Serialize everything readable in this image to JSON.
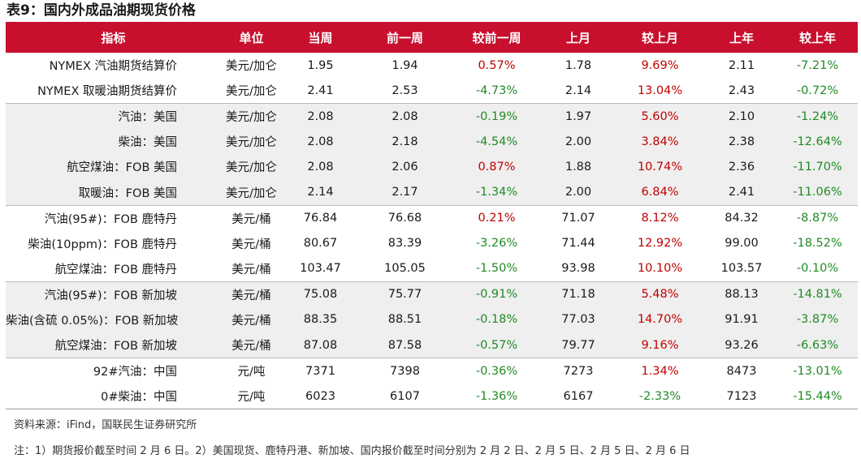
{
  "title": "表9：国内外成品油期现货价格",
  "headers": [
    "指标",
    "单位",
    "当周",
    "前一周",
    "较前一周",
    "上月",
    "较上月",
    "上年",
    "较上年"
  ],
  "rows": [
    {
      "name": "NYMEX 汽油期货结算价",
      "unit": "美元/加仑",
      "cur": "1.95",
      "prev": "1.94",
      "wow": "0.57%",
      "lm": "1.78",
      "mom": "9.69%",
      "ly": "2.11",
      "yoy": "-7.21%"
    },
    {
      "name": "NYMEX 取暖油期货结算价",
      "unit": "美元/加仑",
      "cur": "2.41",
      "prev": "2.53",
      "wow": "-4.73%",
      "lm": "2.14",
      "mom": "13.04%",
      "ly": "2.43",
      "yoy": "-0.72%"
    },
    {
      "name": "汽油：美国",
      "unit": "美元/加仑",
      "cur": "2.08",
      "prev": "2.08",
      "wow": "-0.19%",
      "lm": "1.97",
      "mom": "5.60%",
      "ly": "2.10",
      "yoy": "-1.24%"
    },
    {
      "name": "柴油：美国",
      "unit": "美元/加仑",
      "cur": "2.08",
      "prev": "2.18",
      "wow": "-4.54%",
      "lm": "2.00",
      "mom": "3.84%",
      "ly": "2.38",
      "yoy": "-12.64%"
    },
    {
      "name": "航空煤油：FOB 美国",
      "unit": "美元/加仑",
      "cur": "2.08",
      "prev": "2.06",
      "wow": "0.87%",
      "lm": "1.88",
      "mom": "10.74%",
      "ly": "2.36",
      "yoy": "-11.70%"
    },
    {
      "name": "取暖油：FOB 美国",
      "unit": "美元/加仑",
      "cur": "2.14",
      "prev": "2.17",
      "wow": "-1.34%",
      "lm": "2.00",
      "mom": "6.84%",
      "ly": "2.41",
      "yoy": "-11.06%"
    },
    {
      "name": "汽油(95#)：FOB 鹿特丹",
      "unit": "美元/桶",
      "cur": "76.84",
      "prev": "76.68",
      "wow": "0.21%",
      "lm": "71.07",
      "mom": "8.12%",
      "ly": "84.32",
      "yoy": "-8.87%"
    },
    {
      "name": "柴油(10ppm)：FOB 鹿特丹",
      "unit": "美元/桶",
      "cur": "80.67",
      "prev": "83.39",
      "wow": "-3.26%",
      "lm": "71.44",
      "mom": "12.92%",
      "ly": "99.00",
      "yoy": "-18.52%"
    },
    {
      "name": "航空煤油：FOB 鹿特丹",
      "unit": "美元/桶",
      "cur": "103.47",
      "prev": "105.05",
      "wow": "-1.50%",
      "lm": "93.98",
      "mom": "10.10%",
      "ly": "103.57",
      "yoy": "-0.10%"
    },
    {
      "name": "汽油(95#)：FOB 新加坡",
      "unit": "美元/桶",
      "cur": "75.08",
      "prev": "75.77",
      "wow": "-0.91%",
      "lm": "71.18",
      "mom": "5.48%",
      "ly": "88.13",
      "yoy": "-14.81%"
    },
    {
      "name": "柴油(含硫 0.05%)：FOB 新加坡",
      "unit": "美元/桶",
      "cur": "88.35",
      "prev": "88.51",
      "wow": "-0.18%",
      "lm": "77.03",
      "mom": "14.70%",
      "ly": "91.91",
      "yoy": "-3.87%"
    },
    {
      "name": "航空煤油：FOB 新加坡",
      "unit": "美元/桶",
      "cur": "87.08",
      "prev": "87.58",
      "wow": "-0.57%",
      "lm": "79.77",
      "mom": "9.16%",
      "ly": "93.26",
      "yoy": "-6.63%"
    },
    {
      "name": "92#汽油：中国",
      "unit": "元/吨",
      "cur": "7371",
      "prev": "7398",
      "wow": "-0.36%",
      "lm": "7273",
      "mom": "1.34%",
      "ly": "8473",
      "yoy": "-13.01%"
    },
    {
      "name": "0#柴油：中国",
      "unit": "元/吨",
      "cur": "6023",
      "prev": "6107",
      "wow": "-1.36%",
      "lm": "6167",
      "mom": "-2.33%",
      "ly": "7123",
      "yoy": "-15.44%"
    }
  ],
  "source": "资料来源：iFind，国联民生证券研究所",
  "note": "注：1）期货报价截至时间 2 月 6 日。2）美国现货、鹿特丹港、新加坡、国内报价截至时间分别为 2 月 2 日、2 月 5 日、2 月 5 日、2 月 6 日",
  "colors": {
    "header_bg": "#c8102e",
    "positive": "#c00000",
    "negative": "#1f8a24",
    "shade": "#efefef"
  }
}
